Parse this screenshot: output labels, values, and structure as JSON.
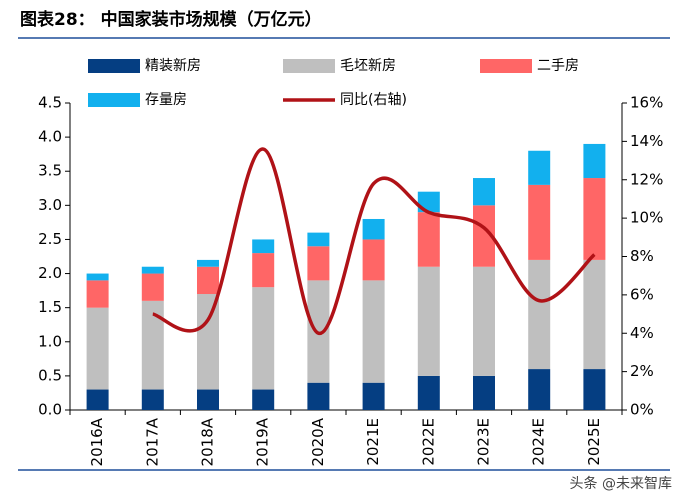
{
  "chart_data": {
    "type": "bar",
    "stacked": true,
    "title": "图表28：  中国家装市场规模（万亿元）",
    "watermark": "头条 @未来智库",
    "categories": [
      "2016A",
      "2017A",
      "2018A",
      "2019A",
      "2020A",
      "2021E",
      "2022E",
      "2023E",
      "2024E",
      "2025E"
    ],
    "series": [
      {
        "name": "精装新房",
        "color": "#053E82",
        "values": [
          0.3,
          0.3,
          0.3,
          0.3,
          0.4,
          0.4,
          0.5,
          0.5,
          0.6,
          0.6
        ]
      },
      {
        "name": "毛坯新房",
        "color": "#BFBFBF",
        "values": [
          1.2,
          1.3,
          1.4,
          1.5,
          1.5,
          1.5,
          1.6,
          1.6,
          1.6,
          1.6
        ]
      },
      {
        "name": "二手房",
        "color": "#FF6666",
        "values": [
          0.4,
          0.4,
          0.4,
          0.5,
          0.5,
          0.6,
          0.8,
          0.9,
          1.1,
          1.2
        ]
      },
      {
        "name": "存量房",
        "color": "#12B0EE",
        "values": [
          0.1,
          0.1,
          0.1,
          0.2,
          0.2,
          0.3,
          0.3,
          0.4,
          0.5,
          0.5
        ]
      },
      {
        "name": "同比(右轴)",
        "color": "#B01217",
        "type": "line",
        "axis": "y2",
        "smooth": true,
        "values": [
          null,
          5.0,
          4.7,
          13.6,
          4.0,
          11.8,
          10.3,
          9.5,
          5.7,
          8.1
        ]
      }
    ],
    "ylim": [
      0,
      4.5
    ],
    "yticks": [
      {
        "value": 0,
        "label": "0.0"
      },
      {
        "value": 0.5,
        "label": "0.5"
      },
      {
        "value": 1,
        "label": "1.0"
      },
      {
        "value": 1.5,
        "label": "1.5"
      },
      {
        "value": 2,
        "label": "2.0"
      },
      {
        "value": 2.5,
        "label": "2.5"
      },
      {
        "value": 3,
        "label": "3.0"
      },
      {
        "value": 3.5,
        "label": "3.5"
      },
      {
        "value": 4,
        "label": "4.0"
      },
      {
        "value": 4.5,
        "label": "4.5"
      }
    ],
    "y2lim": [
      0,
      16
    ],
    "y2ticks": [
      {
        "value": 0,
        "label": "0%"
      },
      {
        "value": 2,
        "label": "2%"
      },
      {
        "value": 4,
        "label": "4%"
      },
      {
        "value": 6,
        "label": "6%"
      },
      {
        "value": 8,
        "label": "8%"
      },
      {
        "value": 10,
        "label": "10%"
      },
      {
        "value": 12,
        "label": "12%"
      },
      {
        "value": 14,
        "label": "14%"
      },
      {
        "value": 16,
        "label": "16%"
      }
    ],
    "grid": false
  }
}
